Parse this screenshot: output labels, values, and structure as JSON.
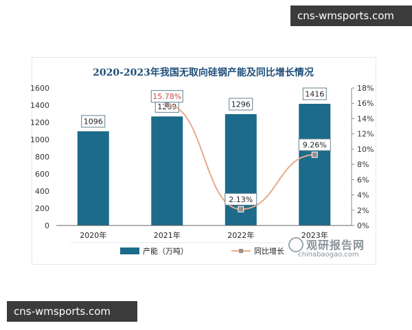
{
  "watermarks": {
    "top": "cns-wmsports.com",
    "bottom": "cns-wmsports.com"
  },
  "logo": {
    "main": "观研报告网",
    "sub": "chinabaogao.com"
  },
  "colors": {
    "bar": "#1c6b8a",
    "line": "#e8a98a",
    "title": "#1f4e79"
  },
  "chart_data": {
    "type": "bar",
    "title": "2020-2023年我国无取向硅钢产能及同比增长情况",
    "categories": [
      "2020年",
      "2021年",
      "2022年",
      "2023年"
    ],
    "series": [
      {
        "name": "产能（万吨）",
        "type": "bar",
        "axis": "left",
        "values": [
          1096,
          1269,
          1296,
          1416
        ],
        "labels": [
          "1096",
          "1269",
          "1296",
          "1416"
        ]
      },
      {
        "name": "同比增长",
        "type": "line",
        "axis": "right",
        "values": [
          null,
          15.78,
          2.13,
          9.26
        ],
        "labels": [
          "",
          "15.78%",
          "2.13%",
          "9.26%"
        ]
      }
    ],
    "y_left": {
      "ylim": [
        0,
        1600
      ],
      "ticks": [
        "0",
        "200",
        "400",
        "600",
        "800",
        "1000",
        "1200",
        "1400",
        "1600"
      ]
    },
    "y_right": {
      "ylim": [
        0,
        18
      ],
      "ticks": [
        "0%",
        "2%",
        "4%",
        "6%",
        "8%",
        "10%",
        "12%",
        "14%",
        "16%",
        "18%"
      ]
    },
    "grid": false,
    "legend": "bottom"
  }
}
